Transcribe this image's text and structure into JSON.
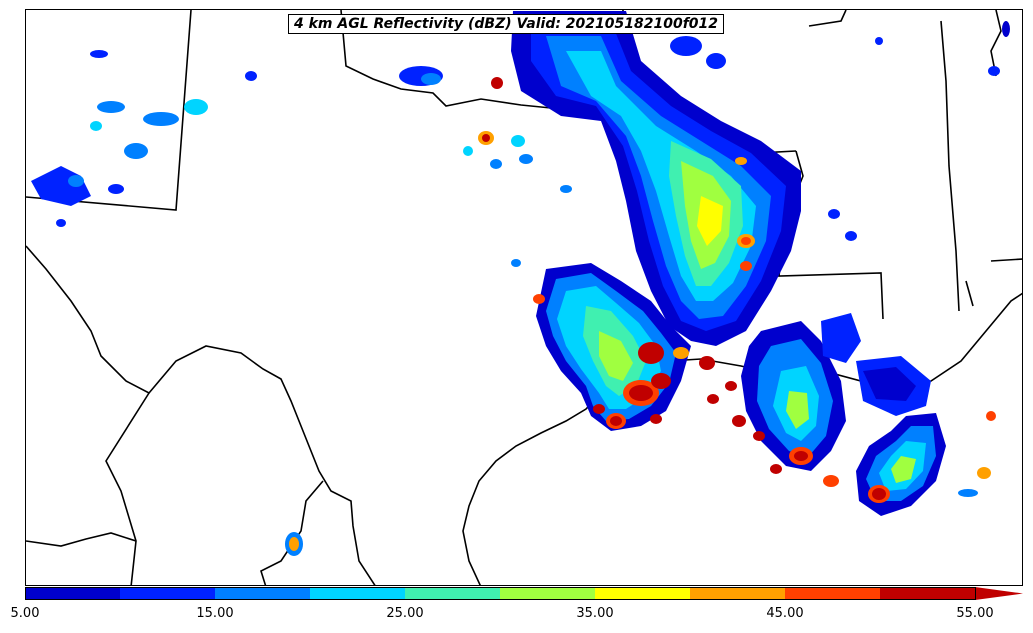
{
  "map": {
    "title": "4 km AGL Reflectivity (dBZ) Valid: 202105182100f012",
    "field": "reflectivity"
  },
  "colorbar": {
    "tick_labels": [
      "5.00",
      "15.00",
      "25.00",
      "35.00",
      "45.00",
      "55.00"
    ],
    "levels": [
      5,
      10,
      15,
      20,
      25,
      30,
      35,
      40,
      45,
      50,
      55
    ],
    "colors": [
      "#0000cd",
      "#0022ff",
      "#0080ff",
      "#00d4ff",
      "#40f0b0",
      "#a0ff40",
      "#ffff00",
      "#ffa000",
      "#ff4000",
      "#c00000"
    ],
    "extend": "max"
  }
}
